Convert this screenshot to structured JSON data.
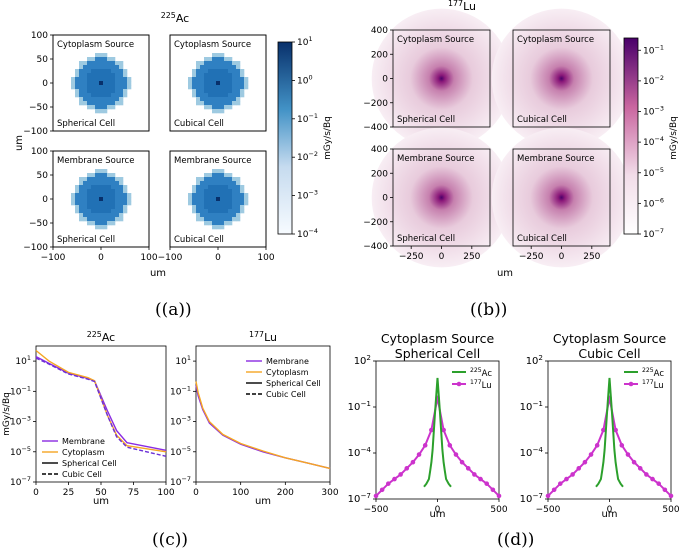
{
  "colors": {
    "ac_dark": "#08306b",
    "ac_mid": "#2171b5",
    "ac_light": "#9ecae1",
    "lu_dark": "#49006a",
    "lu_mid": "#ae017e",
    "lu_light": "#f2dde9",
    "membrane": "#8a2be2",
    "cytoplasm": "#f5a623",
    "ac_green": "#2ca02c",
    "lu_magenta": "#cc33cc"
  },
  "captions": {
    "a": "((a))",
    "b": "((b))",
    "c": "((c))",
    "d": "((d))"
  },
  "chart_data": [
    {
      "id": "a",
      "type": "heatmap",
      "title_prefix": "225",
      "title": "Ac",
      "xlabel": "um",
      "ylabel": "um",
      "xlim": [
        -100,
        100
      ],
      "ylim": [
        -100,
        100
      ],
      "x_ticks": [
        "−100",
        "0",
        "100"
      ],
      "y_ticks": [
        "100",
        "50",
        "0",
        "−50",
        "−100"
      ],
      "colorbar": {
        "label": "mGy/s/Bq",
        "log_min": -4,
        "log_max": 1,
        "tick_exps": [
          "1",
          "0",
          "−1",
          "−2",
          "−3",
          "−4"
        ]
      },
      "panels": [
        {
          "source": "Cytoplasm Source",
          "cell": "Spherical Cell"
        },
        {
          "source": "Cytoplasm Source",
          "cell": "Cubical Cell"
        },
        {
          "source": "Membrane Source",
          "cell": "Spherical Cell"
        },
        {
          "source": "Membrane Source",
          "cell": "Cubical Cell"
        }
      ],
      "dose_radius_um": 60
    },
    {
      "id": "b",
      "type": "heatmap",
      "title_prefix": "177",
      "title": "Lu",
      "xlabel": "um",
      "ylabel": "",
      "xlim": [
        -400,
        400
      ],
      "ylim": [
        -400,
        400
      ],
      "x_ticks": [
        "−250",
        "0",
        "250"
      ],
      "y_ticks": [
        "400",
        "200",
        "0",
        "−200",
        "−400"
      ],
      "colorbar": {
        "label": "mGy/s/Bq",
        "log_min": -7,
        "log_max": -0.6,
        "tick_exps": [
          "−1",
          "−2",
          "−3",
          "−4",
          "−5",
          "−6",
          "−7"
        ]
      },
      "panels": [
        {
          "source": "Cytoplasm Source",
          "cell": "Spherical Cell"
        },
        {
          "source": "Cytoplasm Source",
          "cell": "Cubical Cell"
        },
        {
          "source": "Membrane Source",
          "cell": "Spherical Cell"
        },
        {
          "source": "Membrane Source",
          "cell": "Cubical Cell"
        }
      ]
    },
    {
      "id": "c1",
      "type": "line",
      "title_prefix": "225",
      "title": "Ac",
      "xlabel": "um",
      "ylabel": "mGy/s/Bq",
      "xlim": [
        0,
        100
      ],
      "ylim_log10": [
        -7,
        2
      ],
      "x_ticks": [
        "0",
        "25",
        "50",
        "75",
        "100"
      ],
      "y_tick_exps": [
        "1",
        "−1",
        "−3",
        "−5",
        "−7"
      ],
      "legend": [
        "Membrane",
        "Cytoplasm",
        "Spherical Cell",
        "Cubic Cell"
      ],
      "series": [
        {
          "name": "Membrane",
          "style": "solid",
          "x": [
            0,
            10,
            25,
            40,
            45,
            55,
            62,
            70,
            100
          ],
          "log10": [
            1.3,
            0.85,
            0.2,
            -0.15,
            -0.3,
            -2.3,
            -3.6,
            -4.4,
            -4.9
          ]
        },
        {
          "name": "Cytoplasm",
          "style": "solid",
          "x": [
            0,
            10,
            25,
            40,
            45,
            55,
            62,
            70,
            100
          ],
          "log10": [
            1.7,
            1.0,
            0.25,
            -0.1,
            -0.3,
            -2.6,
            -3.9,
            -4.6,
            -5.0
          ]
        },
        {
          "name": "Membrane Cubic",
          "style": "dashed",
          "x": [
            0,
            10,
            25,
            40,
            45,
            55,
            62,
            70,
            100
          ],
          "log10": [
            1.2,
            0.8,
            0.15,
            -0.2,
            -0.35,
            -2.6,
            -4.0,
            -4.7,
            -5.3
          ]
        }
      ]
    },
    {
      "id": "c2",
      "type": "line",
      "title_prefix": "177",
      "title": "Lu",
      "xlabel": "um",
      "ylabel": "",
      "xlim": [
        0,
        300
      ],
      "ylim_log10": [
        -7,
        2
      ],
      "x_ticks": [
        "0",
        "100",
        "200",
        "300"
      ],
      "y_tick_exps": [
        "1",
        "−1",
        "−3",
        "−5",
        "−7"
      ],
      "legend": [
        "Membrane",
        "Cytoplasm",
        "Spherical Cell",
        "Cubic Cell"
      ],
      "series": [
        {
          "name": "Membrane",
          "style": "solid",
          "x": [
            0,
            5,
            15,
            30,
            60,
            100,
            150,
            200,
            250,
            300
          ],
          "log10": [
            -0.6,
            -1.3,
            -2.2,
            -3.1,
            -3.9,
            -4.5,
            -5.0,
            -5.4,
            -5.75,
            -6.1
          ]
        },
        {
          "name": "Cytoplasm",
          "style": "solid",
          "x": [
            0,
            5,
            15,
            30,
            60,
            100,
            150,
            200,
            250,
            300
          ],
          "log10": [
            -0.35,
            -1.1,
            -2.1,
            -3.0,
            -3.85,
            -4.45,
            -4.95,
            -5.4,
            -5.75,
            -6.1
          ]
        }
      ]
    },
    {
      "id": "d1",
      "type": "line",
      "title_line1": "Cytoplasm Source",
      "title_line2": "Spherical Cell",
      "xlabel": "um",
      "xlim": [
        -500,
        500
      ],
      "ylim_log10": [
        -7,
        2
      ],
      "x_ticks": [
        "−500",
        "0",
        "500"
      ],
      "y_tick_exps": [
        "2",
        "−1",
        "−4",
        "−7"
      ],
      "legend": [
        {
          "prefix": "225",
          "name": "Ac"
        },
        {
          "prefix": "177",
          "name": "Lu"
        }
      ],
      "series": [
        {
          "name": "225Ac",
          "x": [
            -60,
            -50,
            -40,
            -30,
            -20,
            -10,
            0,
            10,
            20,
            30,
            40,
            50,
            60
          ],
          "log10": [
            -5.2,
            -4.6,
            -3.8,
            -2.6,
            -1.4,
            -0.2,
            0.9,
            -0.2,
            -1.4,
            -2.6,
            -3.8,
            -4.6,
            -5.2
          ],
          "x_ext_left": [
            -110,
            -90,
            -70
          ],
          "log10_ext_left": [
            -6.2,
            -6.0,
            -5.7
          ],
          "x_ext_right": [
            70,
            90,
            110
          ],
          "log10_ext_right": [
            -5.7,
            -6.0,
            -6.2
          ]
        },
        {
          "name": "177Lu",
          "x": [
            -500,
            -450,
            -400,
            -350,
            -300,
            -250,
            -200,
            -150,
            -100,
            -50,
            0,
            50,
            100,
            150,
            200,
            250,
            300,
            350,
            400,
            450,
            500
          ],
          "log10": [
            -6.8,
            -6.4,
            -6.0,
            -5.7,
            -5.4,
            -5.0,
            -4.6,
            -4.1,
            -3.5,
            -2.5,
            -0.4,
            -2.5,
            -3.5,
            -4.1,
            -4.6,
            -5.0,
            -5.4,
            -5.7,
            -6.0,
            -6.4,
            -6.8
          ]
        }
      ]
    },
    {
      "id": "d2",
      "type": "line",
      "title_line1": "Cytoplasm Source",
      "title_line2": "Cubic Cell",
      "xlabel": "um",
      "xlim": [
        -500,
        500
      ],
      "ylim_log10": [
        -7,
        2
      ],
      "x_ticks": [
        "−500",
        "0",
        "500"
      ],
      "y_tick_exps": [
        "2",
        "−1",
        "−4",
        "−7"
      ],
      "legend": [
        {
          "prefix": "225",
          "name": "Ac"
        },
        {
          "prefix": "177",
          "name": "Lu"
        }
      ],
      "series": [
        {
          "name": "225Ac",
          "x": [
            -60,
            -50,
            -40,
            -30,
            -20,
            -10,
            0,
            10,
            20,
            30,
            40,
            50,
            60
          ],
          "log10": [
            -5.2,
            -4.6,
            -3.8,
            -2.6,
            -1.4,
            -0.2,
            0.9,
            -0.2,
            -1.4,
            -2.6,
            -3.8,
            -4.6,
            -5.2
          ],
          "x_ext_left": [
            -110,
            -90,
            -70
          ],
          "log10_ext_left": [
            -6.2,
            -6.0,
            -5.7
          ],
          "x_ext_right": [
            70,
            90,
            110
          ],
          "log10_ext_right": [
            -5.7,
            -6.0,
            -6.2
          ]
        },
        {
          "name": "177Lu",
          "x": [
            -500,
            -450,
            -400,
            -350,
            -300,
            -250,
            -200,
            -150,
            -100,
            -50,
            0,
            50,
            100,
            150,
            200,
            250,
            300,
            350,
            400,
            450,
            500
          ],
          "log10": [
            -6.8,
            -6.4,
            -6.0,
            -5.7,
            -5.4,
            -5.0,
            -4.6,
            -4.1,
            -3.5,
            -2.5,
            -0.4,
            -2.5,
            -3.5,
            -4.1,
            -4.6,
            -5.0,
            -5.4,
            -5.7,
            -6.0,
            -6.4,
            -6.8
          ]
        }
      ]
    }
  ]
}
